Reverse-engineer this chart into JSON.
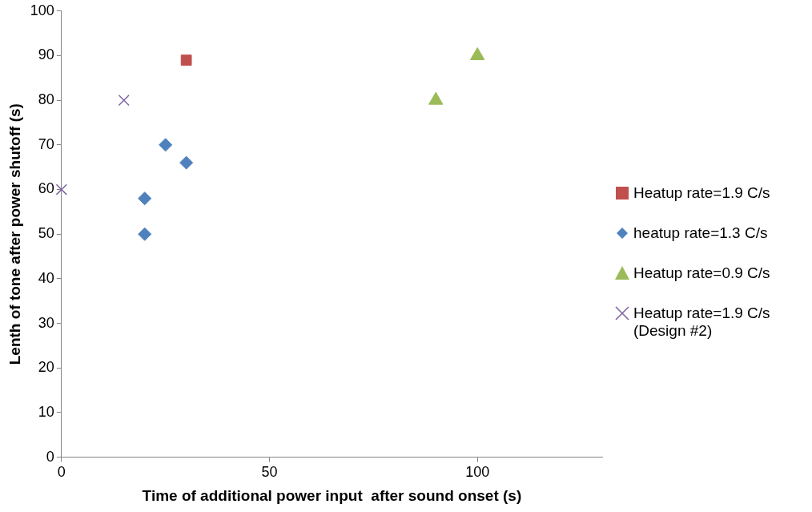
{
  "chart_data": {
    "type": "scatter",
    "xlabel": "Time of additional power input  after sound onset (s)",
    "ylabel": "Lenth of tone after power shutoff (s)",
    "xlim": [
      0,
      130
    ],
    "xticks": [
      0,
      50,
      100
    ],
    "ylim": [
      0,
      100
    ],
    "yticks": [
      0,
      10,
      20,
      30,
      40,
      50,
      60,
      70,
      80,
      90,
      100
    ],
    "grid": false,
    "legend": "right",
    "series": [
      {
        "name": "Heatup rate=1.9 C/s",
        "color": "#c0504d",
        "marker": "square",
        "x": [
          30
        ],
        "values": [
          89
        ]
      },
      {
        "name": "heatup rate=1.3 C/s",
        "color": "#4f81bd",
        "marker": "diamond",
        "x": [
          25,
          30,
          20,
          20
        ],
        "values": [
          70,
          66,
          58,
          50
        ]
      },
      {
        "name": "Heatup rate=0.9 C/s",
        "color": "#9bbb59",
        "marker": "triangle",
        "x": [
          90,
          100
        ],
        "values": [
          80,
          90
        ]
      },
      {
        "name": "Heatup rate=1.9 C/s (Design #2)",
        "color": "#8064a2",
        "marker": "cross",
        "x": [
          15,
          0
        ],
        "values": [
          80,
          60
        ]
      }
    ]
  }
}
